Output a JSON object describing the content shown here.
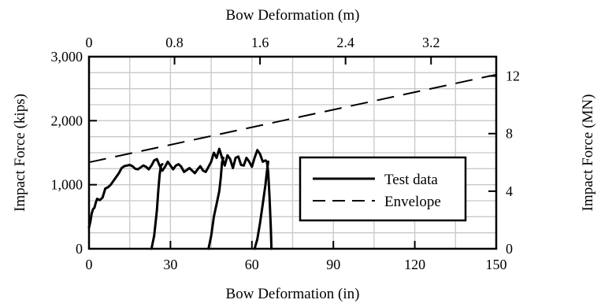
{
  "chart_data": {
    "type": "line",
    "axes": {
      "x_bottom": {
        "label": "Bow Deformation (in)",
        "range": [
          0,
          150
        ],
        "ticks": [
          0,
          30,
          60,
          90,
          120,
          150
        ],
        "tick_labels": [
          "0",
          "30",
          "60",
          "90",
          "120",
          "150"
        ]
      },
      "x_top": {
        "label": "Bow Deformation (m)",
        "range": [
          0,
          3.81
        ],
        "ticks": [
          0,
          0.8,
          1.6,
          2.4,
          3.2
        ],
        "tick_labels": [
          "0",
          "0.8",
          "1.6",
          "2.4",
          "3.2"
        ]
      },
      "y_left": {
        "label": "Impact Force (kips)",
        "range": [
          0,
          3000
        ],
        "ticks": [
          0,
          1000,
          2000,
          3000
        ],
        "tick_labels": [
          "0",
          "1,000",
          "2,000",
          "3,000"
        ]
      },
      "y_right": {
        "label": "Impact Force (MN)",
        "range": [
          0,
          13.345
        ],
        "ticks": [
          0,
          4,
          8,
          12
        ],
        "tick_labels": [
          "0",
          "4",
          "8",
          "12"
        ]
      }
    },
    "grid": true,
    "legend": {
      "placement": "bottom-right",
      "entries": [
        {
          "label": "Test data",
          "style": "solid"
        },
        {
          "label": "Envelope",
          "style": "dashed"
        }
      ]
    },
    "series": [
      {
        "name": "Test data",
        "style": "solid",
        "segments": [
          [
            [
              0,
              330
            ],
            [
              0.5,
              420
            ],
            [
              1,
              550
            ],
            [
              1.5,
              620
            ],
            [
              2,
              640
            ],
            [
              2.5,
              720
            ],
            [
              3,
              780
            ],
            [
              4,
              760
            ],
            [
              5,
              800
            ],
            [
              6,
              940
            ],
            [
              7,
              960
            ],
            [
              8,
              1000
            ],
            [
              9,
              1060
            ],
            [
              10,
              1120
            ],
            [
              11,
              1180
            ],
            [
              12,
              1260
            ],
            [
              13,
              1290
            ],
            [
              14,
              1300
            ],
            [
              15,
              1310
            ],
            [
              16,
              1290
            ],
            [
              17,
              1250
            ],
            [
              18,
              1240
            ],
            [
              19,
              1270
            ],
            [
              20,
              1300
            ],
            [
              21,
              1280
            ],
            [
              22,
              1240
            ],
            [
              23,
              1300
            ],
            [
              24,
              1380
            ],
            [
              25,
              1400
            ],
            [
              26,
              1300
            ],
            [
              27,
              1220
            ],
            [
              28,
              1280
            ],
            [
              29,
              1360
            ],
            [
              30,
              1300
            ],
            [
              31,
              1240
            ],
            [
              32,
              1300
            ],
            [
              33,
              1320
            ],
            [
              34,
              1280
            ],
            [
              35,
              1200
            ],
            [
              36,
              1230
            ],
            [
              37,
              1260
            ],
            [
              38,
              1220
            ],
            [
              39,
              1180
            ],
            [
              40,
              1240
            ],
            [
              41,
              1290
            ],
            [
              42,
              1220
            ],
            [
              43,
              1200
            ],
            [
              44,
              1280
            ],
            [
              45,
              1360
            ],
            [
              46,
              1500
            ],
            [
              47,
              1420
            ],
            [
              48,
              1560
            ],
            [
              49,
              1420
            ],
            [
              50,
              1300
            ],
            [
              51,
              1460
            ],
            [
              52,
              1400
            ],
            [
              53,
              1260
            ],
            [
              54,
              1420
            ],
            [
              55,
              1440
            ],
            [
              56,
              1310
            ],
            [
              57,
              1300
            ],
            [
              58,
              1420
            ],
            [
              59,
              1360
            ],
            [
              60,
              1280
            ],
            [
              61,
              1420
            ],
            [
              62,
              1540
            ],
            [
              63,
              1480
            ],
            [
              64,
              1360
            ],
            [
              65,
              1380
            ],
            [
              65.5,
              1360
            ],
            [
              66,
              1200
            ],
            [
              66.5,
              800
            ],
            [
              67,
              300
            ],
            [
              67.2,
              0
            ]
          ],
          [
            [
              23,
              0
            ],
            [
              24,
              200
            ],
            [
              25,
              600
            ],
            [
              25.5,
              900
            ],
            [
              26,
              1150
            ],
            [
              26.5,
              1300
            ],
            [
              27,
              1320
            ]
          ],
          [
            [
              44,
              0
            ],
            [
              45,
              200
            ],
            [
              46,
              500
            ],
            [
              47,
              700
            ],
            [
              47.5,
              800
            ],
            [
              48,
              900
            ],
            [
              48.5,
              1100
            ],
            [
              49,
              1350
            ],
            [
              49.5,
              1420
            ]
          ],
          [
            [
              61,
              0
            ],
            [
              62,
              150
            ],
            [
              63,
              400
            ],
            [
              64,
              700
            ],
            [
              65,
              1000
            ],
            [
              65.5,
              1200
            ],
            [
              66,
              1360
            ]
          ]
        ]
      },
      {
        "name": "Envelope",
        "style": "dashed",
        "x": [
          0,
          150
        ],
        "y": [
          1350,
          2720
        ]
      }
    ]
  }
}
